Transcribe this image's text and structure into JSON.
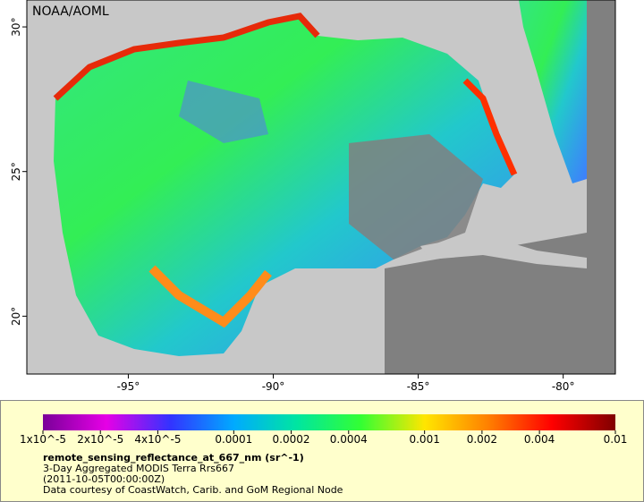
{
  "map": {
    "credit": "NOAA/AOML",
    "xlim": [
      -98.5,
      -78.2
    ],
    "ylim": [
      18.0,
      30.93
    ],
    "xticks": [
      {
        "value": -95,
        "label": "-95°"
      },
      {
        "value": -90,
        "label": "-90°"
      },
      {
        "value": -85,
        "label": "-85°"
      },
      {
        "value": -80,
        "label": "-80°"
      }
    ],
    "yticks": [
      {
        "value": 20,
        "label": "20°"
      },
      {
        "value": 25,
        "label": "25°"
      },
      {
        "value": 30,
        "label": "30°"
      }
    ]
  },
  "colorbar": {
    "clim": [
      1e-05,
      0.01
    ],
    "log_scale": true,
    "colors": [
      "#7a0099",
      "#e600e6",
      "#3333ff",
      "#00aaff",
      "#00e6a0",
      "#33ff33",
      "#ffe600",
      "#ff8000",
      "#ff0000",
      "#800000"
    ],
    "ticks": [
      {
        "value": 1e-05,
        "label": "1x10^-5"
      },
      {
        "value": 2e-05,
        "label": "2x10^-5"
      },
      {
        "value": 4e-05,
        "label": "4x10^-5"
      },
      0.0001,
      0.0002,
      0.0004,
      0.001,
      0.002,
      0.004,
      0.01
    ],
    "title": "remote_sensing_reflectance_at_667_nm (sr^-1)",
    "lines": [
      "3-Day Aggregated MODIS Terra Rrs667",
      "(2011-10-05T00:00:00Z)",
      "Data courtesy of CoastWatch, Carib. and GoM Regional Node"
    ]
  }
}
